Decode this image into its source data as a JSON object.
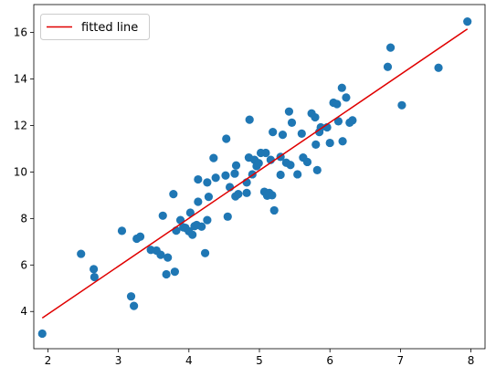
{
  "chart_data": {
    "type": "scatter",
    "title": "",
    "xlabel": "",
    "ylabel": "",
    "xlim": [
      1.8,
      8.2
    ],
    "ylim": [
      2.4,
      17.2
    ],
    "xticks": [
      2,
      3,
      4,
      5,
      6,
      7,
      8
    ],
    "yticks": [
      4,
      6,
      8,
      10,
      12,
      14,
      16
    ],
    "grid": false,
    "legend_position": "top-left",
    "series": [
      {
        "kind": "scatter",
        "color": "#1f77b4",
        "points": [
          [
            1.92,
            3.05
          ],
          [
            2.47,
            6.48
          ],
          [
            2.65,
            5.82
          ],
          [
            2.66,
            5.48
          ],
          [
            3.05,
            7.47
          ],
          [
            3.18,
            4.65
          ],
          [
            3.22,
            4.24
          ],
          [
            3.26,
            7.13
          ],
          [
            3.31,
            7.22
          ],
          [
            3.46,
            6.65
          ],
          [
            3.54,
            6.62
          ],
          [
            3.6,
            6.44
          ],
          [
            3.63,
            8.12
          ],
          [
            3.68,
            5.6
          ],
          [
            3.7,
            6.32
          ],
          [
            3.78,
            9.05
          ],
          [
            3.8,
            5.71
          ],
          [
            3.82,
            7.48
          ],
          [
            3.88,
            7.93
          ],
          [
            3.92,
            7.62
          ],
          [
            3.95,
            7.6
          ],
          [
            4.0,
            7.45
          ],
          [
            4.02,
            8.25
          ],
          [
            4.05,
            7.3
          ],
          [
            4.08,
            7.67
          ],
          [
            4.11,
            7.72
          ],
          [
            4.13,
            8.72
          ],
          [
            4.13,
            9.68
          ],
          [
            4.18,
            7.65
          ],
          [
            4.23,
            6.51
          ],
          [
            4.26,
            7.93
          ],
          [
            4.26,
            9.55
          ],
          [
            4.28,
            8.93
          ],
          [
            4.35,
            10.6
          ],
          [
            4.38,
            9.75
          ],
          [
            4.52,
            9.85
          ],
          [
            4.53,
            11.43
          ],
          [
            4.55,
            8.08
          ],
          [
            4.58,
            9.35
          ],
          [
            4.65,
            9.93
          ],
          [
            4.66,
            8.95
          ],
          [
            4.67,
            10.28
          ],
          [
            4.7,
            9.05
          ],
          [
            4.82,
            9.1
          ],
          [
            4.82,
            9.55
          ],
          [
            4.85,
            10.62
          ],
          [
            4.86,
            12.25
          ],
          [
            4.9,
            9.9
          ],
          [
            4.93,
            10.52
          ],
          [
            4.96,
            10.25
          ],
          [
            4.99,
            10.38
          ],
          [
            5.02,
            10.82
          ],
          [
            5.07,
            9.15
          ],
          [
            5.09,
            10.82
          ],
          [
            5.11,
            8.98
          ],
          [
            5.14,
            9.1
          ],
          [
            5.16,
            10.52
          ],
          [
            5.18,
            9.0
          ],
          [
            5.19,
            11.72
          ],
          [
            5.21,
            8.35
          ],
          [
            5.3,
            10.65
          ],
          [
            5.3,
            9.88
          ],
          [
            5.33,
            11.6
          ],
          [
            5.38,
            10.4
          ],
          [
            5.42,
            12.6
          ],
          [
            5.44,
            10.3
          ],
          [
            5.46,
            12.12
          ],
          [
            5.54,
            9.9
          ],
          [
            5.6,
            11.65
          ],
          [
            5.62,
            10.62
          ],
          [
            5.68,
            10.43
          ],
          [
            5.74,
            12.52
          ],
          [
            5.79,
            12.35
          ],
          [
            5.8,
            11.18
          ],
          [
            5.82,
            10.08
          ],
          [
            5.85,
            11.72
          ],
          [
            5.87,
            11.92
          ],
          [
            5.96,
            11.92
          ],
          [
            6.0,
            11.25
          ],
          [
            6.05,
            12.98
          ],
          [
            6.1,
            12.92
          ],
          [
            6.12,
            12.18
          ],
          [
            6.17,
            13.62
          ],
          [
            6.18,
            11.32
          ],
          [
            6.23,
            13.2
          ],
          [
            6.28,
            12.12
          ],
          [
            6.32,
            12.22
          ],
          [
            6.82,
            14.52
          ],
          [
            6.86,
            15.35
          ],
          [
            7.02,
            12.87
          ],
          [
            7.54,
            14.48
          ],
          [
            7.95,
            16.47
          ]
        ]
      },
      {
        "kind": "line",
        "name": "fitted line",
        "color": "#e00000",
        "x": [
          1.92,
          7.95
        ],
        "y": [
          3.72,
          16.15
        ]
      }
    ]
  }
}
